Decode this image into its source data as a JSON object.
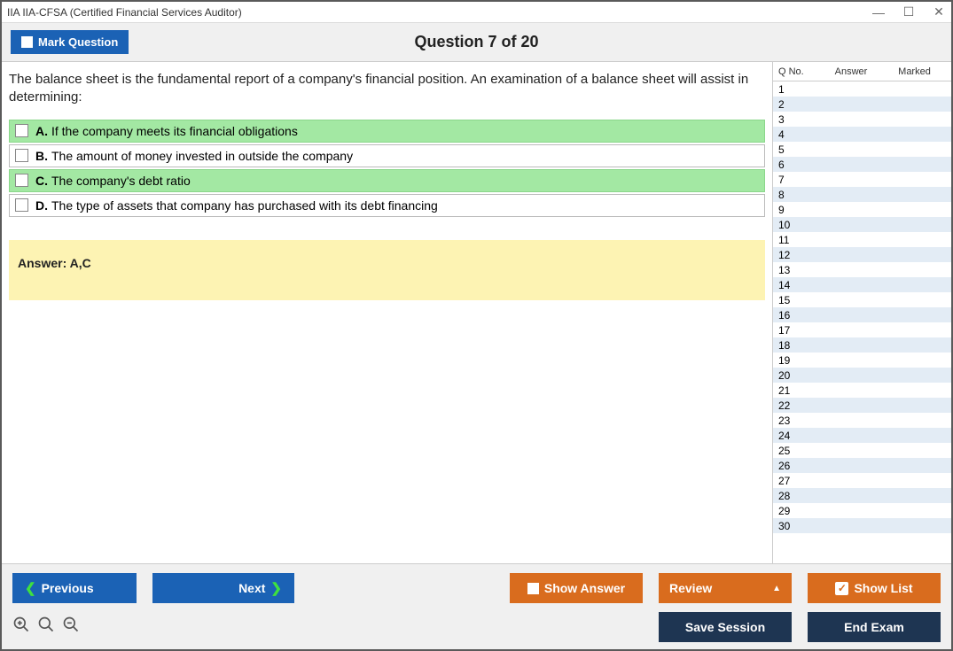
{
  "window": {
    "title": "IIA IIA-CFSA (Certified Financial Services Auditor)"
  },
  "header": {
    "mark_label": "Mark Question",
    "question_counter": "Question 7 of 20"
  },
  "question": {
    "text": "The balance sheet is the fundamental report of a company's financial position. An examination of a balance sheet will assist in determining:",
    "options": [
      {
        "letter": "A.",
        "text": "If the company meets its financial obligations",
        "correct": true
      },
      {
        "letter": "B.",
        "text": "The amount of money invested in outside the company",
        "correct": false
      },
      {
        "letter": "C.",
        "text": "The company's debt ratio",
        "correct": true
      },
      {
        "letter": "D.",
        "text": "The type of assets that company has purchased with its debt financing",
        "correct": false
      }
    ],
    "answer_label": "Answer: A,C"
  },
  "sidebar": {
    "header_qno": "Q No.",
    "header_answer": "Answer",
    "header_marked": "Marked",
    "row_count": 30
  },
  "footer": {
    "previous": "Previous",
    "next": "Next",
    "show_answer": "Show Answer",
    "review": "Review",
    "show_list": "Show List",
    "save_session": "Save Session",
    "end_exam": "End Exam"
  },
  "colors": {
    "blue": "#1b62b5",
    "orange": "#d96c1e",
    "dark": "#1e3552",
    "correct_bg": "#a3e8a3",
    "answer_bg": "#fdf3b3",
    "even_row": "#e3ecf5"
  }
}
